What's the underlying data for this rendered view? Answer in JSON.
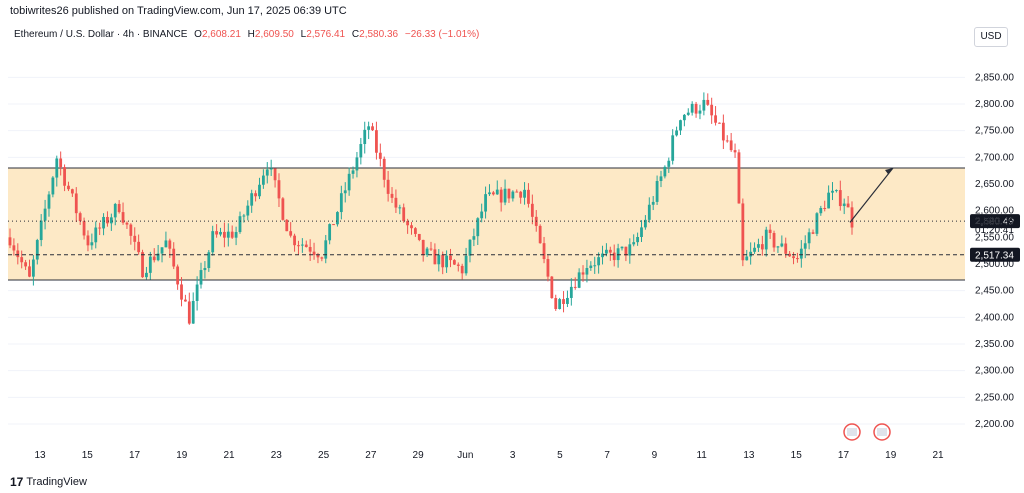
{
  "header": {
    "publisher": "tobiwrites26 published on TradingView.com, Jun 17, 2025 06:39 UTC"
  },
  "legend": {
    "symbol": "Ethereum / U.S. Dollar · 4h · BINANCE",
    "open_label": "O",
    "open": "2,608.21",
    "high_label": "H",
    "high": "2,609.50",
    "low_label": "L",
    "low": "2,576.41",
    "close_label": "C",
    "close": "2,580.36",
    "change": "−26.33 (−1.01%)"
  },
  "currency_button": "USD",
  "footer": {
    "brand": "TradingView"
  },
  "colors": {
    "up": "#26a69a",
    "down": "#ef5350",
    "range_fill": "#fde9c6",
    "grid": "#f0f3fa",
    "axis_text": "#131722"
  },
  "chart_data": {
    "type": "candlestick",
    "ylim": [
      2170,
      2905
    ],
    "price_ticks": [
      "2,850.00",
      "2,800.00",
      "2,750.00",
      "2,700.00",
      "2,650.00",
      "2,600.00",
      "2,550.00",
      "2,500.00",
      "2,450.00",
      "2,400.00",
      "2,350.00",
      "2,300.00",
      "2,250.00",
      "2,200.00"
    ],
    "price_tick_values": [
      2850,
      2800,
      2750,
      2700,
      2650,
      2600,
      2550,
      2500,
      2450,
      2400,
      2350,
      2300,
      2250,
      2200
    ],
    "x_ticks": [
      "13",
      "15",
      "17",
      "19",
      "21",
      "23",
      "25",
      "27",
      "29",
      "Jun",
      "3",
      "5",
      "7",
      "9",
      "11",
      "13",
      "15",
      "17",
      "19",
      "21"
    ],
    "range_box": {
      "top": 2680,
      "bottom": 2470
    },
    "dotted_levels": [
      2580.49
    ],
    "dashed_levels": [
      2517.34
    ],
    "price_labels": [
      {
        "text": "2,580.49",
        "value": 2580.49,
        "style": "dark"
      },
      {
        "text": "2,580.36",
        "value": 2580.36,
        "style": "plain"
      },
      {
        "text": "01:20:41",
        "value": 2565,
        "style": "plain"
      },
      {
        "text": "2,517.34",
        "value": 2517.34,
        "style": "dark"
      }
    ],
    "projection_arrow": {
      "from": 2578,
      "to": 2680
    },
    "anchors": [
      {
        "x": 0,
        "p": 2550
      },
      {
        "x": 5,
        "p": 2470
      },
      {
        "x": 12,
        "p": 2700
      },
      {
        "x": 20,
        "p": 2540
      },
      {
        "x": 28,
        "p": 2610
      },
      {
        "x": 34,
        "p": 2490
      },
      {
        "x": 40,
        "p": 2540
      },
      {
        "x": 46,
        "p": 2400
      },
      {
        "x": 52,
        "p": 2550
      },
      {
        "x": 58,
        "p": 2560
      },
      {
        "x": 66,
        "p": 2690
      },
      {
        "x": 72,
        "p": 2550
      },
      {
        "x": 80,
        "p": 2520
      },
      {
        "x": 88,
        "p": 2680
      },
      {
        "x": 92,
        "p": 2760
      },
      {
        "x": 98,
        "p": 2620
      },
      {
        "x": 106,
        "p": 2520
      },
      {
        "x": 116,
        "p": 2490
      },
      {
        "x": 122,
        "p": 2620
      },
      {
        "x": 132,
        "p": 2640
      },
      {
        "x": 140,
        "p": 2420
      },
      {
        "x": 148,
        "p": 2500
      },
      {
        "x": 160,
        "p": 2530
      },
      {
        "x": 168,
        "p": 2680
      },
      {
        "x": 172,
        "p": 2780
      },
      {
        "x": 178,
        "p": 2800
      },
      {
        "x": 186,
        "p": 2700
      },
      {
        "x": 188,
        "p": 2500
      },
      {
        "x": 194,
        "p": 2550
      },
      {
        "x": 202,
        "p": 2510
      },
      {
        "x": 210,
        "p": 2630
      },
      {
        "x": 214,
        "p": 2620
      },
      {
        "x": 216,
        "p": 2580
      }
    ],
    "candle_count": 217
  }
}
